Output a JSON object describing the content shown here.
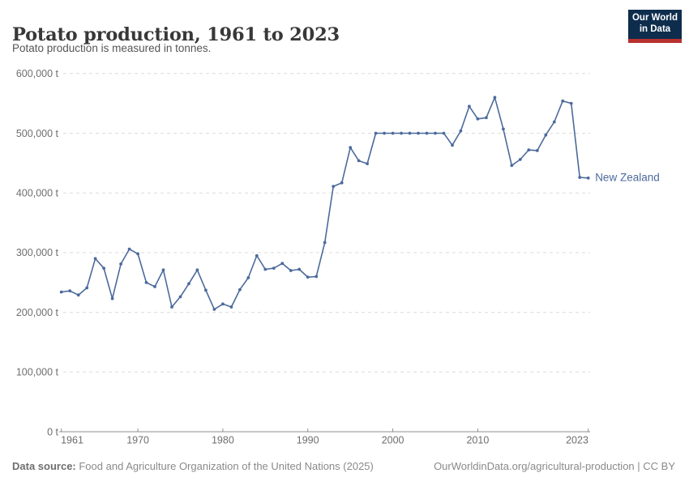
{
  "header": {
    "title": "Potato production, 1961 to 2023",
    "subtitle": "Potato production is measured in tonnes.",
    "logo": {
      "line1": "Our World",
      "line2": "in Data",
      "bg_color": "#0e2d4d",
      "stripe_color": "#b8312f"
    }
  },
  "chart_data": {
    "type": "line",
    "title": "Potato production, 1961 to 2023",
    "subtitle": "Potato production is measured in tonnes.",
    "unit": "tonnes",
    "grid": "horizontal-dashed",
    "legend_position": "end-of-line-label",
    "xlim": [
      1961,
      2023
    ],
    "ylim": [
      0,
      600000
    ],
    "x": [
      1961,
      1962,
      1963,
      1964,
      1965,
      1966,
      1967,
      1968,
      1969,
      1970,
      1971,
      1972,
      1973,
      1974,
      1975,
      1976,
      1977,
      1978,
      1979,
      1980,
      1981,
      1982,
      1983,
      1984,
      1985,
      1986,
      1987,
      1988,
      1989,
      1990,
      1991,
      1992,
      1993,
      1994,
      1995,
      1996,
      1997,
      1998,
      1999,
      2000,
      2001,
      2002,
      2003,
      2004,
      2005,
      2006,
      2007,
      2008,
      2009,
      2010,
      2011,
      2012,
      2013,
      2014,
      2015,
      2016,
      2017,
      2018,
      2019,
      2020,
      2021,
      2022,
      2023
    ],
    "series": [
      {
        "name": "New Zealand",
        "color": "#4c6a9c",
        "values": [
          234000,
          236000,
          229000,
          241000,
          290000,
          274000,
          223000,
          281000,
          306000,
          298000,
          250000,
          243000,
          271000,
          209000,
          226000,
          248000,
          271000,
          237000,
          205000,
          214000,
          209000,
          238000,
          258000,
          295000,
          272000,
          274000,
          282000,
          270000,
          272000,
          259000,
          260000,
          317000,
          411000,
          417000,
          476000,
          454000,
          449000,
          500000,
          500000,
          500000,
          500000,
          500000,
          500000,
          500000,
          500000,
          500000,
          480000,
          504000,
          545000,
          524000,
          526000,
          560000,
          507000,
          446000,
          456000,
          472000,
          471000,
          497000,
          519000,
          554000,
          550000,
          426000,
          425000
        ]
      }
    ],
    "y_ticks": [
      {
        "value": 0,
        "label": "0 t"
      },
      {
        "value": 100000,
        "label": "100,000 t"
      },
      {
        "value": 200000,
        "label": "200,000 t"
      },
      {
        "value": 300000,
        "label": "300,000 t"
      },
      {
        "value": 400000,
        "label": "400,000 t"
      },
      {
        "value": 500000,
        "label": "500,000 t"
      },
      {
        "value": 600000,
        "label": "600,000 t"
      }
    ],
    "x_ticks": [
      {
        "value": 1961,
        "label": "1961"
      },
      {
        "value": 1970,
        "label": "1970"
      },
      {
        "value": 1980,
        "label": "1980"
      },
      {
        "value": 1990,
        "label": "1990"
      },
      {
        "value": 2000,
        "label": "2000"
      },
      {
        "value": 2010,
        "label": "2010"
      },
      {
        "value": 2023,
        "label": "2023"
      }
    ]
  },
  "footer": {
    "source_label": "Data source:",
    "source_text": " Food and Agriculture Organization of the United Nations (2025)",
    "attribution": "OurWorldinData.org/agricultural-production | CC BY"
  }
}
